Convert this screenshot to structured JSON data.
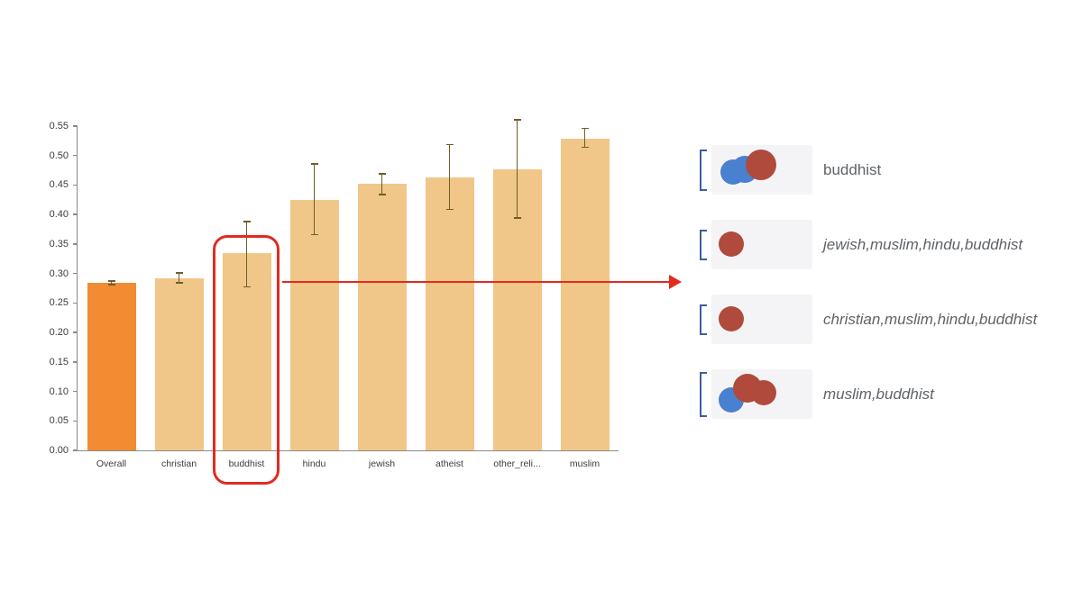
{
  "chart_data": {
    "type": "bar",
    "title": "",
    "xlabel": "",
    "ylabel": "",
    "categories": [
      "Overall",
      "christian",
      "buddhist",
      "hindu",
      "jewish",
      "atheist",
      "other_reli...",
      "muslim"
    ],
    "values": [
      0.284,
      0.292,
      0.334,
      0.425,
      0.452,
      0.463,
      0.477,
      0.528
    ],
    "error_low": [
      0.281,
      0.284,
      0.277,
      0.366,
      0.434,
      0.409,
      0.394,
      0.514
    ],
    "error_high": [
      0.287,
      0.301,
      0.388,
      0.486,
      0.469,
      0.519,
      0.561,
      0.546
    ],
    "ylim": [
      0,
      0.55
    ],
    "ytick_step": 0.05,
    "grid": false,
    "legend_position": "none",
    "bar_colors": {
      "overall": "#f18c32",
      "default": "#f1c689"
    },
    "error_color": "#6e5f28",
    "axis_color": "#8a8a8a",
    "highlight_index": 2,
    "highlight_color": "#e02b20",
    "arrow_color": "#e02b20"
  },
  "cluster_panel": {
    "rows": [
      {
        "label": "buddhist",
        "italic": false,
        "bracket_h": 46,
        "dots": [
          {
            "name": "blue-dot",
            "color": "#4a80d0",
            "x": 10,
            "y": 16,
            "size": 28
          },
          {
            "name": "blue-dot",
            "color": "#4a80d0",
            "x": 22,
            "y": 12,
            "size": 30
          },
          {
            "name": "red-dot",
            "color": "#b04a3c",
            "x": 38,
            "y": 5,
            "size": 34
          }
        ]
      },
      {
        "label": "jewish,muslim,hindu,buddhist",
        "italic": true,
        "bracket_h": 34,
        "dots": [
          {
            "name": "red-dot",
            "color": "#b04a3c",
            "x": 8,
            "y": 13,
            "size": 28
          }
        ]
      },
      {
        "label": "christian,muslim,hindu,buddhist",
        "italic": true,
        "bracket_h": 34,
        "dots": [
          {
            "name": "red-dot",
            "color": "#b04a3c",
            "x": 8,
            "y": 13,
            "size": 28
          }
        ]
      },
      {
        "label": "muslim,buddhist",
        "italic": true,
        "bracket_h": 50,
        "dots": [
          {
            "name": "blue-dot",
            "color": "#4a80d0",
            "x": 8,
            "y": 20,
            "size": 28
          },
          {
            "name": "red-dot",
            "color": "#b04a3c",
            "x": 24,
            "y": 5,
            "size": 32
          },
          {
            "name": "red-dot",
            "color": "#b04a3c",
            "x": 44,
            "y": 12,
            "size": 28
          }
        ]
      }
    ]
  }
}
